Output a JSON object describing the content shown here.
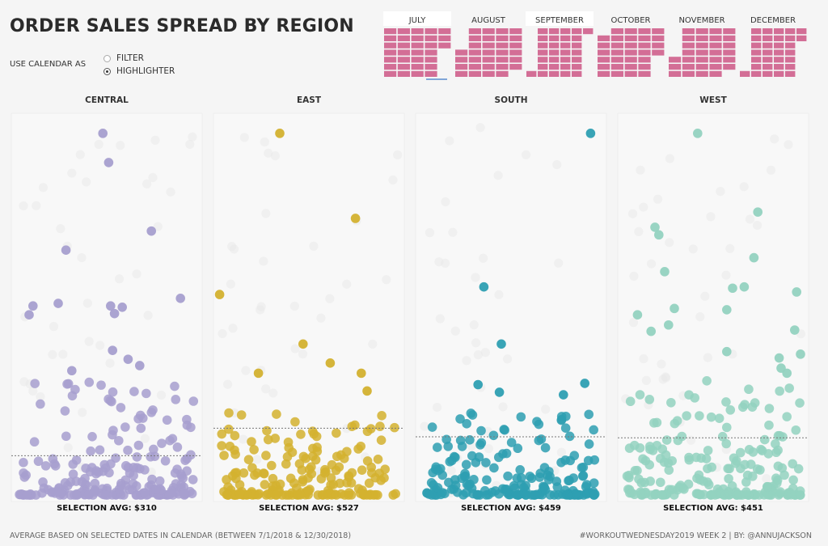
{
  "header": {
    "title": "ORDER SALES SPREAD BY REGION",
    "calendar_label": "USE CALENDAR AS",
    "options": [
      {
        "label": "FILTER",
        "checked": false
      },
      {
        "label": "HIGHLIGHTER",
        "checked": true
      }
    ]
  },
  "calendar": {
    "months": [
      "JULY",
      "AUGUST",
      "SEPTEMBER",
      "OCTOBER",
      "NOVEMBER",
      "DECEMBER"
    ],
    "highlighted_months": [
      "JULY",
      "SEPTEMBER"
    ],
    "cell_color": "#d36e96",
    "selected_range": [
      "7/1/2018",
      "12/30/2018"
    ]
  },
  "chart_data": {
    "type": "scatter",
    "title": "",
    "xlabel": "",
    "ylabel": "",
    "regions": [
      {
        "name": "CENTRAL",
        "color": "#a79fcf",
        "avg": 310,
        "avg_label": "SELECTION AVG: $310",
        "outliers": [
          [
            0.48,
            2850
          ],
          [
            0.51,
            2620
          ],
          [
            0.73,
            2080
          ],
          [
            0.29,
            1930
          ],
          [
            0.88,
            1550
          ],
          [
            0.12,
            1490
          ],
          [
            0.25,
            1510
          ],
          [
            0.52,
            1490
          ],
          [
            0.58,
            1480
          ],
          [
            0.1,
            1420
          ],
          [
            0.54,
            1430
          ],
          [
            0.53,
            1140
          ],
          [
            0.61,
            1070
          ],
          [
            0.67,
            1020
          ],
          [
            0.32,
            980
          ]
        ],
        "cloud": {
          "count": 210,
          "seed": 11,
          "max": 900
        }
      },
      {
        "name": "EAST",
        "color": "#d3b12f",
        "avg": 527,
        "avg_label": "SELECTION AVG: $527",
        "outliers": [
          [
            0.35,
            2850
          ],
          [
            0.74,
            2180
          ],
          [
            0.04,
            1580
          ],
          [
            0.47,
            1190
          ],
          [
            0.61,
            1040
          ],
          [
            0.24,
            960
          ],
          [
            0.77,
            960
          ],
          [
            0.8,
            820
          ]
        ],
        "cloud": {
          "count": 190,
          "seed": 23,
          "max": 650
        }
      },
      {
        "name": "SOUTH",
        "color": "#2e9fb2",
        "avg": 459,
        "avg_label": "SELECTION AVG: $459",
        "outliers": [
          [
            0.91,
            2850
          ],
          [
            0.36,
            1640
          ],
          [
            0.45,
            1190
          ],
          [
            0.33,
            870
          ],
          [
            0.88,
            880
          ],
          [
            0.44,
            810
          ],
          [
            0.77,
            790
          ]
        ],
        "cloud": {
          "count": 185,
          "seed": 37,
          "max": 650
        }
      },
      {
        "name": "WEST",
        "color": "#93d2c0",
        "avg": 451,
        "avg_label": "SELECTION AVG: $451",
        "outliers": [
          [
            0.42,
            2850
          ],
          [
            0.73,
            2230
          ],
          [
            0.2,
            2110
          ],
          [
            0.22,
            2050
          ],
          [
            0.71,
            1870
          ],
          [
            0.25,
            1760
          ],
          [
            0.6,
            1630
          ],
          [
            0.66,
            1640
          ],
          [
            0.93,
            1600
          ],
          [
            0.3,
            1470
          ],
          [
            0.11,
            1420
          ],
          [
            0.57,
            1460
          ],
          [
            0.27,
            1340
          ],
          [
            0.18,
            1290
          ],
          [
            0.57,
            1130
          ],
          [
            0.84,
            1080
          ],
          [
            0.92,
            1300
          ],
          [
            0.95,
            1110
          ],
          [
            0.85,
            1000
          ],
          [
            0.88,
            960
          ]
        ],
        "cloud": {
          "count": 205,
          "seed": 53,
          "max": 900
        }
      }
    ],
    "ylim": [
      0,
      2900
    ],
    "grid": false,
    "legend": "none"
  },
  "footer": {
    "note": "AVERAGE BASED ON SELECTED DATES IN CALENDAR (BETWEEN 7/1/2018 & 12/30/2018)",
    "credit": "#WORKOUTWEDNESDAY2019 WEEK 2 | BY: @ANNUJACKSON"
  }
}
